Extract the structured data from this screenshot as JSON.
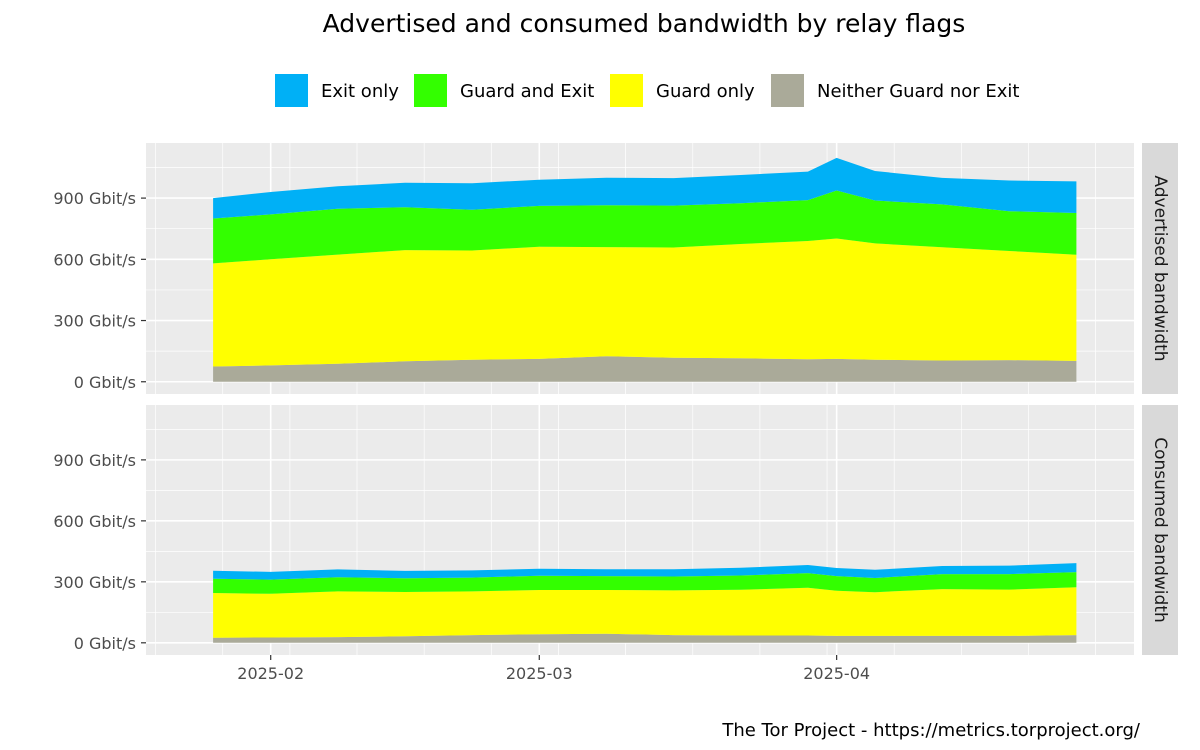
{
  "chart_data": {
    "type": "area",
    "stacked": true,
    "title": "Advertised and consumed bandwidth by relay flags",
    "caption": "The Tor Project - https://metrics.torproject.org/",
    "legend": {
      "position": "top",
      "entries": [
        {
          "key": "exit",
          "label": "Exit only",
          "color": "#00B0F6"
        },
        {
          "key": "guard_exit",
          "label": "Guard and Exit",
          "color": "#33FF00"
        },
        {
          "key": "guard",
          "label": "Guard only",
          "color": "#FFFF00"
        },
        {
          "key": "neither",
          "label": "Neither Guard nor Exit",
          "color": "#AAAA99"
        }
      ]
    },
    "x_axis": {
      "range": [
        "2025-01-19",
        "2025-05-02"
      ],
      "ticks": [
        {
          "value": "2025-02-01",
          "label": "2025-02"
        },
        {
          "value": "2025-03-01",
          "label": "2025-03"
        },
        {
          "value": "2025-04-01",
          "label": "2025-04"
        }
      ]
    },
    "y_axis": {
      "unit": "Gbit/s",
      "range": [
        -60,
        1170
      ],
      "ticks": [
        {
          "value": 0,
          "label": "0 Gbit/s"
        },
        {
          "value": 300,
          "label": "300 Gbit/s"
        },
        {
          "value": 600,
          "label": "600 Gbit/s"
        },
        {
          "value": 900,
          "label": "900 Gbit/s"
        }
      ]
    },
    "grid": true,
    "x": [
      "2025-01-26",
      "2025-02-01",
      "2025-02-08",
      "2025-02-15",
      "2025-02-22",
      "2025-03-01",
      "2025-03-08",
      "2025-03-15",
      "2025-03-22",
      "2025-03-29",
      "2025-04-01",
      "2025-04-05",
      "2025-04-12",
      "2025-04-19",
      "2025-04-26"
    ],
    "panels": [
      {
        "label": "Advertised bandwidth",
        "series": [
          {
            "key": "neither",
            "values": [
              75,
              80,
              88,
              100,
              108,
              112,
              125,
              118,
              115,
              110,
              112,
              108,
              104,
              106,
              102
            ]
          },
          {
            "key": "guard",
            "values": [
              505,
              520,
              535,
              545,
              535,
              550,
              535,
              540,
              560,
              580,
              590,
              570,
              555,
              535,
              520
            ]
          },
          {
            "key": "guard_exit",
            "values": [
              220,
              220,
              225,
              210,
              200,
              200,
              205,
              205,
              200,
              200,
              235,
              210,
              210,
              195,
              205
            ]
          },
          {
            "key": "exit",
            "values": [
              100,
              110,
              110,
              120,
              130,
              128,
              135,
              135,
              138,
              140,
              160,
              145,
              130,
              150,
              155
            ]
          }
        ]
      },
      {
        "label": "Consumed bandwidth",
        "series": [
          {
            "key": "neither",
            "values": [
              25,
              26,
              28,
              32,
              38,
              42,
              45,
              38,
              36,
              36,
              34,
              34,
              34,
              34,
              38
            ]
          },
          {
            "key": "guard",
            "values": [
              220,
              215,
              225,
              218,
              215,
              218,
              215,
              220,
              225,
              235,
              222,
              215,
              230,
              228,
              235
            ]
          },
          {
            "key": "guard_exit",
            "values": [
              70,
              70,
              70,
              68,
              68,
              70,
              68,
              68,
              70,
              72,
              72,
              70,
              74,
              76,
              75
            ]
          },
          {
            "key": "exit",
            "values": [
              40,
              38,
              38,
              36,
              35,
              34,
              34,
              36,
              38,
              40,
              40,
              40,
              40,
              42,
              44
            ]
          }
        ]
      }
    ]
  }
}
